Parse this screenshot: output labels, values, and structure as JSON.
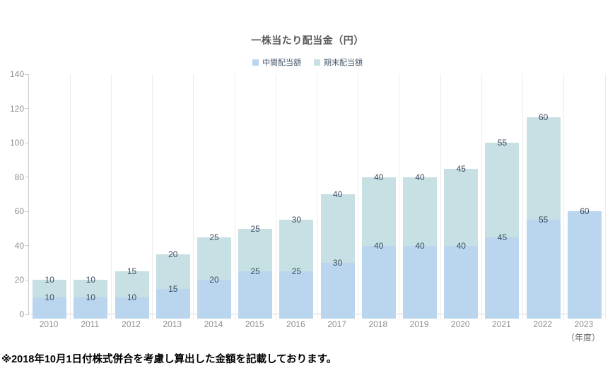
{
  "chart": {
    "title": "一株当たり配当金（円）",
    "legend": [
      {
        "label": "中間配当額",
        "color": "#b9d6ee"
      },
      {
        "label": "期末配当額",
        "color": "#c7e0e4"
      }
    ],
    "y_axis": {
      "ticks": [
        0,
        20,
        40,
        60,
        80,
        100,
        120,
        140
      ],
      "max": 140
    },
    "x_axis_unit": "（年度）",
    "footnote": "※2018年10月1日付株式併合を考慮し算出した金額を記載しております。",
    "colors": {
      "interim_bar": "#b9d6ee",
      "yearend_bar": "#c7e0e4",
      "grid_line": "#ececec",
      "axis_line": "#cccccc",
      "tick_text": "#8f8f8f",
      "value_label_text": "#3e4e63"
    }
  },
  "chart_data": {
    "type": "bar",
    "stacked": true,
    "title": "一株当たり配当金（円）",
    "xlabel": "（年度）",
    "ylabel": "",
    "ylim": [
      0,
      140
    ],
    "grid": "vertical-only",
    "legend_position": "top-center",
    "categories": [
      "2010",
      "2011",
      "2012",
      "2013",
      "2014",
      "2015",
      "2016",
      "2017",
      "2018",
      "2019",
      "2020",
      "2021",
      "2022",
      "2023"
    ],
    "series": [
      {
        "name": "中間配当額",
        "color": "#b9d6ee",
        "values": [
          10,
          10,
          10,
          15,
          20,
          25,
          25,
          30,
          40,
          40,
          40,
          45,
          55,
          60
        ]
      },
      {
        "name": "期末配当額",
        "color": "#c7e0e4",
        "values": [
          10,
          10,
          15,
          20,
          25,
          25,
          30,
          40,
          40,
          40,
          45,
          55,
          60,
          null
        ]
      }
    ],
    "totals": [
      20,
      20,
      25,
      35,
      45,
      50,
      55,
      70,
      80,
      80,
      85,
      100,
      115,
      60
    ]
  }
}
